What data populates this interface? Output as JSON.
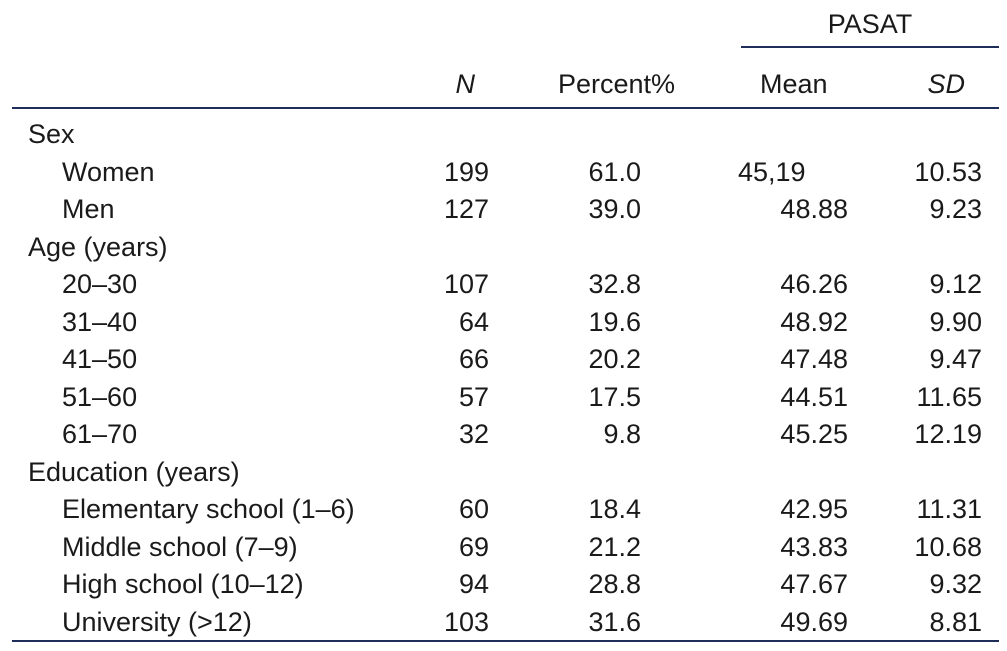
{
  "table": {
    "group_header": "PASAT",
    "columns": {
      "n": "N",
      "percent": "Percent%",
      "mean": "Mean",
      "sd": "SD"
    },
    "sections": [
      {
        "label": "Sex",
        "rows": [
          {
            "label": "Women",
            "n": "199",
            "percent": "61.0",
            "mean": "45,19",
            "sd": "10.53"
          },
          {
            "label": "Men",
            "n": "127",
            "percent": "39.0",
            "mean": "48.88",
            "sd": "9.23"
          }
        ]
      },
      {
        "label": "Age (years)",
        "rows": [
          {
            "label": "20–30",
            "n": "107",
            "percent": "32.8",
            "mean": "46.26",
            "sd": "9.12"
          },
          {
            "label": "31–40",
            "n": "64",
            "percent": "19.6",
            "mean": "48.92",
            "sd": "9.90"
          },
          {
            "label": "41–50",
            "n": "66",
            "percent": "20.2",
            "mean": "47.48",
            "sd": "9.47"
          },
          {
            "label": "51–60",
            "n": "57",
            "percent": "17.5",
            "mean": "44.51",
            "sd": "11.65"
          },
          {
            "label": "61–70",
            "n": "32",
            "percent": "9.8",
            "mean": "45.25",
            "sd": "12.19"
          }
        ]
      },
      {
        "label": "Education (years)",
        "rows": [
          {
            "label": "Elementary school (1–6)",
            "n": "60",
            "percent": "18.4",
            "mean": "42.95",
            "sd": "11.31"
          },
          {
            "label": "Middle school (7–9)",
            "n": "69",
            "percent": "21.2",
            "mean": "43.83",
            "sd": "10.68"
          },
          {
            "label": "High school (10–12)",
            "n": "94",
            "percent": "28.8",
            "mean": "47.67",
            "sd": "9.32"
          },
          {
            "label": "University (>12)",
            "n": "103",
            "percent": "31.6",
            "mean": "49.69",
            "sd": "8.81"
          }
        ]
      }
    ]
  }
}
